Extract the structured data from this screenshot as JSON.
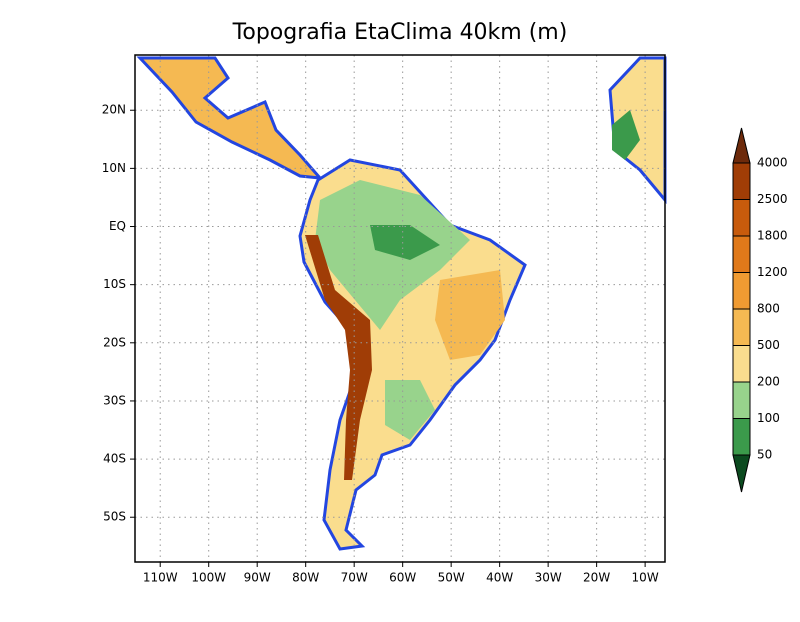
{
  "title": "Topografia EtaClima 40km (m)",
  "lonlim": [
    -115.2,
    -5.9
  ],
  "latlim": [
    -57.7,
    29.5
  ],
  "lon_ticks": [
    {
      "value": -110,
      "label": "110W"
    },
    {
      "value": -100,
      "label": "100W"
    },
    {
      "value": -90,
      "label": "90W"
    },
    {
      "value": -80,
      "label": "80W"
    },
    {
      "value": -70,
      "label": "70W"
    },
    {
      "value": -60,
      "label": "60W"
    },
    {
      "value": -50,
      "label": "50W"
    },
    {
      "value": -40,
      "label": "40W"
    },
    {
      "value": -30,
      "label": "30W"
    },
    {
      "value": -20,
      "label": "20W"
    },
    {
      "value": -10,
      "label": "10W"
    }
  ],
  "lat_ticks": [
    {
      "value": 20,
      "label": "20N"
    },
    {
      "value": 10,
      "label": "10N"
    },
    {
      "value": 0,
      "label": "EQ"
    },
    {
      "value": -10,
      "label": "10S"
    },
    {
      "value": -20,
      "label": "20S"
    },
    {
      "value": -30,
      "label": "30S"
    },
    {
      "value": -40,
      "label": "40S"
    },
    {
      "value": -50,
      "label": "50S"
    }
  ],
  "colorbar": {
    "levels": [
      50,
      100,
      200,
      500,
      800,
      1200,
      1800,
      2500,
      4000
    ],
    "colors": [
      "#0b4a1f",
      "#3b9a4b",
      "#98d38c",
      "#fadd8e",
      "#f5b952",
      "#f09b32",
      "#e0791a",
      "#c85b0c",
      "#a03d06",
      "#6d2a0b"
    ]
  }
}
